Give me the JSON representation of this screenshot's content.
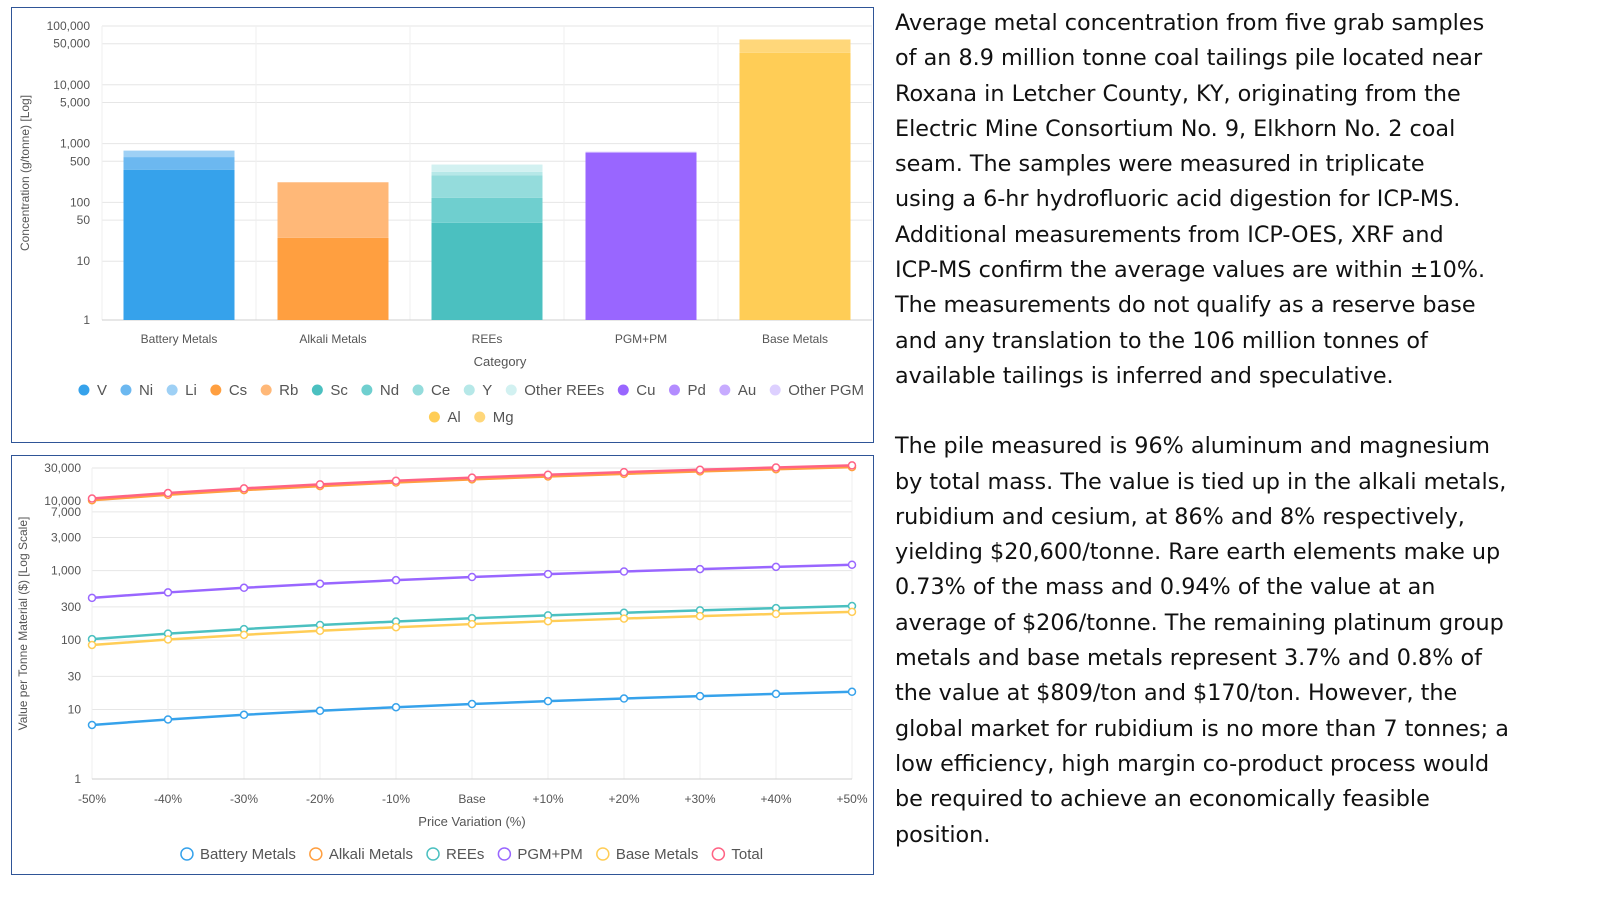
{
  "chart_data": [
    {
      "type": "bar",
      "stacked": true,
      "log_scale": true,
      "xlabel": "Category",
      "ylabel": "Concentration (g/tonne) [Log]",
      "ylim": [
        1,
        100000
      ],
      "y_ticks": [
        1,
        10,
        50,
        100,
        500,
        1000,
        5000,
        10000,
        50000,
        100000
      ],
      "y_tick_labels": [
        "1",
        "10",
        "50",
        "100",
        "500",
        "1,000",
        "5,000",
        "10,000",
        "50,000",
        "100,000"
      ],
      "grid": true,
      "legend_position": "bottom",
      "categories": [
        "Battery Metals",
        "Alkali Metals",
        "REEs",
        "PGM+PM",
        "Base Metals"
      ],
      "series": [
        {
          "name": "V",
          "category": "Battery Metals",
          "value": 360,
          "color": "#36a2eb"
        },
        {
          "name": "Ni",
          "category": "Battery Metals",
          "value": 230,
          "color": "#6cb8f0"
        },
        {
          "name": "Li",
          "category": "Battery Metals",
          "value": 170,
          "color": "#9ed0f5"
        },
        {
          "name": "Cs",
          "category": "Alkali Metals",
          "value": 25,
          "color": "#ff9f40"
        },
        {
          "name": "Rb",
          "category": "Alkali Metals",
          "value": 195,
          "color": "#ffb878"
        },
        {
          "name": "Sc",
          "category": "REEs",
          "value": 45,
          "color": "#4bc0c0"
        },
        {
          "name": "Nd",
          "category": "REEs",
          "value": 75,
          "color": "#6fcfcf"
        },
        {
          "name": "Ce",
          "category": "REEs",
          "value": 170,
          "color": "#94dcdc"
        },
        {
          "name": "Y",
          "category": "REEs",
          "value": 40,
          "color": "#b6e8e8"
        },
        {
          "name": "Other REEs",
          "category": "REEs",
          "value": 110,
          "color": "#d2f1f1"
        },
        {
          "name": "Cu",
          "category": "PGM+PM",
          "value": 700,
          "color": "#9966ff"
        },
        {
          "name": "Pd",
          "category": "PGM+PM",
          "value": 15,
          "color": "#b38cff"
        },
        {
          "name": "Au",
          "category": "PGM+PM",
          "value": 10,
          "color": "#c7abff"
        },
        {
          "name": "Other PGM",
          "category": "PGM+PM",
          "value": 5,
          "color": "#ddd0ff"
        },
        {
          "name": "Al",
          "category": "Base Metals",
          "value": 35000,
          "color": "#ffcd56"
        },
        {
          "name": "Mg",
          "category": "Base Metals",
          "value": 24000,
          "color": "#ffd77a"
        }
      ]
    },
    {
      "type": "line",
      "log_scale": true,
      "xlabel": "Price Variation (%)",
      "ylabel": "Value per Tonne Material ($) [Log Scale]",
      "ylim": [
        1,
        30000
      ],
      "y_ticks": [
        1,
        10,
        30,
        100,
        300,
        1000,
        3000,
        7000,
        10000,
        30000
      ],
      "y_tick_labels": [
        "1",
        "10",
        "30",
        "100",
        "300",
        "1,000",
        "3,000",
        "7,000",
        "10,000",
        "30,000"
      ],
      "grid": true,
      "legend_position": "bottom",
      "x": [
        "-50%",
        "-40%",
        "-30%",
        "-20%",
        "-10%",
        "Base",
        "+10%",
        "+20%",
        "+30%",
        "+40%",
        "+50%"
      ],
      "series": [
        {
          "name": "Battery Metals",
          "color": "#36a2eb",
          "values": [
            6.0,
            7.2,
            8.4,
            9.6,
            10.8,
            12.0,
            13.2,
            14.4,
            15.6,
            16.8,
            18.0
          ]
        },
        {
          "name": "Alkali Metals",
          "color": "#ff9f40",
          "values": [
            10300,
            12360,
            14420,
            16480,
            18540,
            20600,
            22660,
            24720,
            26780,
            28840,
            30900
          ]
        },
        {
          "name": "REEs",
          "color": "#4bc0c0",
          "values": [
            103,
            124,
            144,
            165,
            185,
            206,
            227,
            247,
            268,
            288,
            309
          ]
        },
        {
          "name": "PGM+PM",
          "color": "#9966ff",
          "values": [
            405,
            485,
            566,
            647,
            728,
            809,
            890,
            971,
            1052,
            1133,
            1214
          ]
        },
        {
          "name": "Base Metals",
          "color": "#ffcd56",
          "values": [
            85,
            102,
            119,
            136,
            153,
            170,
            187,
            204,
            221,
            238,
            255
          ]
        },
        {
          "name": "Total",
          "color": "#ff6384",
          "values": [
            10900,
            13080,
            15260,
            17440,
            19620,
            21800,
            23980,
            26160,
            28340,
            30520,
            32700
          ]
        }
      ]
    }
  ],
  "description": {
    "paragraph_1": "Average metal concentration from five grab samples\nof an 8.9 million tonne coal tailings pile located near\nRoxana in Letcher County, KY, originating from the\nElectric Mine Consortium No. 9, Elkhorn No. 2 coal\nseam. The samples were measured in triplicate\nusing a 6-hr hydrofluoric acid digestion for ICP-MS.\nAdditional measurements from ICP-OES, XRF and\nICP-MS confirm the average values are within ±10%.\nThe measurements do not qualify as a reserve base\nand any translation to the 106 million tonnes of\navailable tailings is inferred and speculative.",
    "paragraph_2": "The pile measured is 96% aluminum and magnesium\nby total mass. The value is tied up in the alkali metals,\nrubidium and cesium, at 86% and 8% respectively,\nyielding $20,600/tonne. Rare earth elements make up\n0.73% of the mass and 0.94% of the value at an\naverage of $206/tonne. The remaining platinum group\nmetals and base metals represent 3.7% and 0.8% of\nthe value at $809/ton and $170/ton. However, the\nglobal market for rubidium is no more than 7 tonnes; a\nlow efficiency, high margin co-product process would\nbe required to achieve an economically feasible\nposition."
  }
}
